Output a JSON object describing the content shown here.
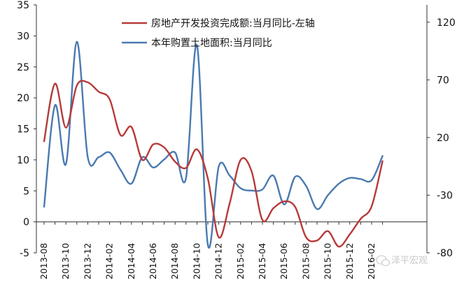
{
  "chart_data": {
    "type": "line",
    "title": "",
    "xlabel": "",
    "ylabel": "",
    "x_tick_labels": [
      "2013-08",
      "2013-10",
      "2013-12",
      "2014-02",
      "2014-04",
      "2014-06",
      "2014-08",
      "2014-10",
      "2014-12",
      "2015-02",
      "2015-04",
      "2015-06",
      "2015-08",
      "2015-10",
      "2015-12",
      "2016-02"
    ],
    "x": [
      "2013-08",
      "2013-09",
      "2013-10",
      "2013-11",
      "2013-12",
      "2014-01",
      "2014-02",
      "2014-03",
      "2014-04",
      "2014-05",
      "2014-06",
      "2014-07",
      "2014-08",
      "2014-09",
      "2014-10",
      "2014-11",
      "2014-12",
      "2015-01",
      "2015-02",
      "2015-03",
      "2015-04",
      "2015-05",
      "2015-06",
      "2015-07",
      "2015-08",
      "2015-09",
      "2015-10",
      "2015-11",
      "2015-12",
      "2016-01",
      "2016-02",
      "2016-03"
    ],
    "y_left": {
      "ylim": [
        -5,
        35
      ],
      "ticks": [
        "-5",
        "0",
        "5",
        "10",
        "15",
        "20",
        "25",
        "30",
        "35"
      ]
    },
    "y_right": {
      "ylim": [
        -80,
        135
      ],
      "ticks": [
        "-80",
        "-30",
        "20",
        "70",
        "120"
      ]
    },
    "grid": false,
    "legend_position": "top",
    "series": [
      {
        "name": "房地产开发投资完成额:当月同比-左轴",
        "axis": "left",
        "color": "#b73a3a",
        "values": [
          13.0,
          22.3,
          15.2,
          22.0,
          22.5,
          21.0,
          19.8,
          14.0,
          15.3,
          10.0,
          12.5,
          12.0,
          9.7,
          8.7,
          11.7,
          7.0,
          -2.5,
          3.0,
          10.0,
          8.2,
          0.3,
          2.2,
          3.3,
          2.4,
          -2.5,
          -3.0,
          -1.5,
          -4.0,
          -2.0,
          0.5,
          2.5,
          9.8
        ]
      },
      {
        "name": "本年购置土地面积:当月同比",
        "axis": "right",
        "color": "#4a7ab0",
        "values": [
          -40,
          48,
          -3,
          103,
          3,
          3,
          7,
          -8,
          -20,
          3,
          -6,
          1,
          7,
          -15,
          100,
          -73,
          -5,
          -13,
          -24,
          -26,
          -25,
          -13,
          -38,
          -14,
          -22,
          -42,
          -30,
          -20,
          -15,
          -16,
          -17,
          4
        ]
      }
    ]
  },
  "watermark": "泽平宏观"
}
